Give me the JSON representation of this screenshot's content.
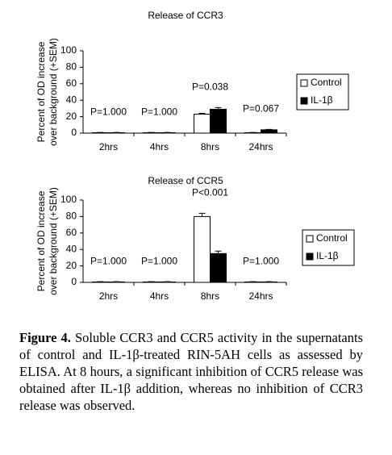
{
  "chart_data": [
    {
      "type": "bar",
      "title": "Release of CCR3",
      "ylabel": [
        "Percent of OD increase",
        "over background (+SEM)"
      ],
      "categories": [
        "2hrs",
        "4hrs",
        "8hrs",
        "24hrs"
      ],
      "series": [
        {
          "name": "Control",
          "color": "#ffffff",
          "values": [
            0.5,
            0.5,
            23,
            0.5
          ],
          "errors": [
            0.3,
            0.3,
            1,
            0.3
          ]
        },
        {
          "name": "IL-1β",
          "color": "#000000",
          "values": [
            0.5,
            0.5,
            29,
            4
          ],
          "errors": [
            0.3,
            0.3,
            2,
            0.5
          ]
        }
      ],
      "annotations": [
        "P=1.000",
        "P=1.000",
        "P=0.038",
        "P=0.067"
      ],
      "ylim": [
        0,
        100
      ],
      "yticks": [
        0,
        20,
        40,
        60,
        80,
        100
      ],
      "legend": "right"
    },
    {
      "type": "bar",
      "title": "Release of CCR5",
      "ylabel": [
        "Percent of OD increase",
        "over background (+SEM)"
      ],
      "categories": [
        "2hrs",
        "4hrs",
        "8hrs",
        "24hrs"
      ],
      "series": [
        {
          "name": "Control",
          "color": "#ffffff",
          "values": [
            0.5,
            0.5,
            80,
            0.5
          ],
          "errors": [
            0.3,
            0.3,
            4,
            0.3
          ]
        },
        {
          "name": "IL-1β",
          "color": "#000000",
          "values": [
            0.5,
            0.5,
            35,
            0.5
          ],
          "errors": [
            0.3,
            0.3,
            3,
            0.3
          ]
        }
      ],
      "annotations": [
        "P=1.000",
        "P=1.000",
        "P<0.001",
        "P=1.000"
      ],
      "ylim": [
        0,
        100
      ],
      "yticks": [
        0,
        20,
        40,
        60,
        80,
        100
      ],
      "legend": "right"
    }
  ],
  "caption": {
    "label": "Figure 4.",
    "text": "Soluble CCR3 and CCR5 activity in the supernatants of control and IL-1β-treated RIN-5AH cells as assessed by ELISA. At 8 hours, a significant inhibition of CCR5 release was obtained after IL-1β addition, whereas no inhibition of CCR3 release was observed."
  }
}
